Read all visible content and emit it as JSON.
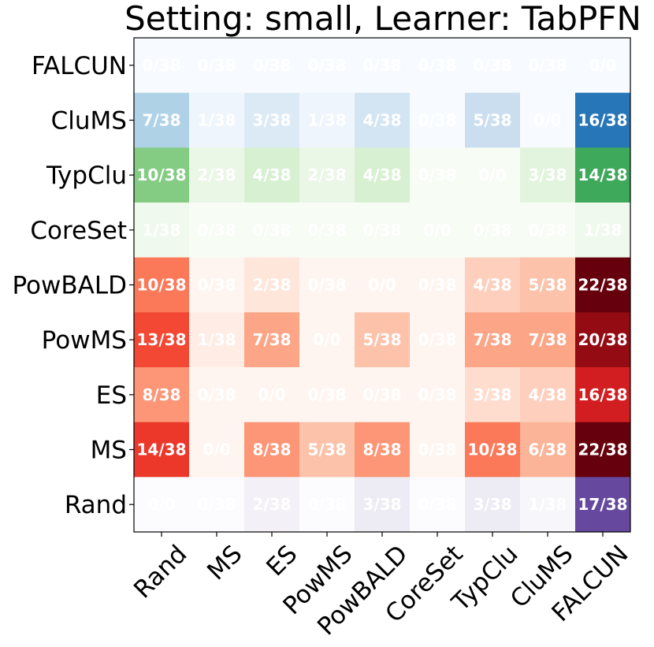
{
  "chart_data": {
    "type": "heatmap",
    "title": "Setting: small, Learner: TabPFN",
    "xlabel": "",
    "ylabel": "",
    "x_categories": [
      "Rand",
      "MS",
      "ES",
      "PowMS",
      "PowBALD",
      "CoreSet",
      "TypClu",
      "CluMS",
      "FALCUN"
    ],
    "y_categories": [
      "FALCUN",
      "CluMS",
      "TypClu",
      "CoreSet",
      "PowBALD",
      "PowMS",
      "ES",
      "MS",
      "Rand"
    ],
    "rows": [
      {
        "name": "FALCUN",
        "colormap": "Blues",
        "cells": [
          "0/38",
          "0/38",
          "0/38",
          "0/38",
          "0/38",
          "0/38",
          "0/38",
          "0/38",
          "0/0"
        ]
      },
      {
        "name": "CluMS",
        "colormap": "Blues",
        "cells": [
          "7/38",
          "1/38",
          "3/38",
          "1/38",
          "4/38",
          "0/38",
          "5/38",
          "0/0",
          "16/38"
        ]
      },
      {
        "name": "TypClu",
        "colormap": "Greens",
        "cells": [
          "10/38",
          "2/38",
          "4/38",
          "2/38",
          "4/38",
          "0/38",
          "0/0",
          "3/38",
          "14/38"
        ]
      },
      {
        "name": "CoreSet",
        "colormap": "Greens",
        "cells": [
          "1/38",
          "0/38",
          "0/38",
          "0/38",
          "0/38",
          "0/0",
          "0/38",
          "0/38",
          "1/38"
        ]
      },
      {
        "name": "PowBALD",
        "colormap": "Reds",
        "cells": [
          "10/38",
          "0/38",
          "2/38",
          "0/38",
          "0/0",
          "0/38",
          "4/38",
          "5/38",
          "22/38"
        ]
      },
      {
        "name": "PowMS",
        "colormap": "Reds",
        "cells": [
          "13/38",
          "1/38",
          "7/38",
          "0/0",
          "5/38",
          "0/38",
          "7/38",
          "7/38",
          "20/38"
        ]
      },
      {
        "name": "ES",
        "colormap": "Reds",
        "cells": [
          "8/38",
          "0/38",
          "0/0",
          "0/38",
          "0/38",
          "0/38",
          "3/38",
          "4/38",
          "16/38"
        ]
      },
      {
        "name": "MS",
        "colormap": "Reds",
        "cells": [
          "14/38",
          "0/0",
          "8/38",
          "5/38",
          "8/38",
          "0/38",
          "10/38",
          "6/38",
          "22/38"
        ]
      },
      {
        "name": "Rand",
        "colormap": "Purples",
        "cells": [
          "0/0",
          "0/38",
          "2/38",
          "0/38",
          "3/38",
          "0/38",
          "3/38",
          "1/38",
          "17/38"
        ]
      }
    ],
    "value_range": [
      0,
      22
    ],
    "colors": {
      "Blues": [
        "#f7fbff",
        "#deebf7",
        "#c6dbef",
        "#9ecae1",
        "#6baed6",
        "#4292c6",
        "#2171b5",
        "#08519c",
        "#08306b"
      ],
      "Greens": [
        "#f7fcf5",
        "#e5f5e0",
        "#c7e9c0",
        "#a1d99b",
        "#74c476",
        "#41ab5d",
        "#238b45",
        "#006d2c",
        "#00441b"
      ],
      "Reds": [
        "#fff5f0",
        "#fee0d2",
        "#fcbba1",
        "#fc9272",
        "#fb6a4a",
        "#ef3b2c",
        "#cb181d",
        "#a50f15",
        "#67000d"
      ],
      "Purples": [
        "#fcfbfd",
        "#efedf5",
        "#dadaeb",
        "#bcbddc",
        "#9e9ac8",
        "#807dba",
        "#6a51a3",
        "#54278f",
        "#3f007d"
      ]
    }
  }
}
